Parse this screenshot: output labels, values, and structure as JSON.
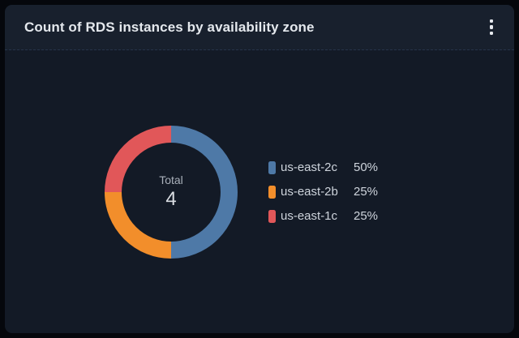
{
  "header": {
    "title": "Count of RDS instances by availability zone",
    "menu_icon": "kebab-vertical-icon"
  },
  "colors": {
    "page_bg": "#05070c",
    "card_bg": "#131a26",
    "header_bg": "#18202d",
    "divider": "#26334a",
    "title_text": "#e4e8ed",
    "legend_text": "#ced4dc",
    "center_label_text": "#a9b0ba",
    "center_value_text": "#dadee3"
  },
  "chart_data": {
    "type": "pie",
    "donut": true,
    "title": "Count of RDS instances by availability zone",
    "center_label": "Total",
    "total": "4",
    "legend_position": "right",
    "series": [
      {
        "name": "us-east-2c",
        "value": 2,
        "percent": "50%",
        "color": "#4E79A7"
      },
      {
        "name": "us-east-2b",
        "value": 1,
        "percent": "25%",
        "color": "#F28E2B"
      },
      {
        "name": "us-east-1c",
        "value": 1,
        "percent": "25%",
        "color": "#E15759"
      }
    ]
  }
}
